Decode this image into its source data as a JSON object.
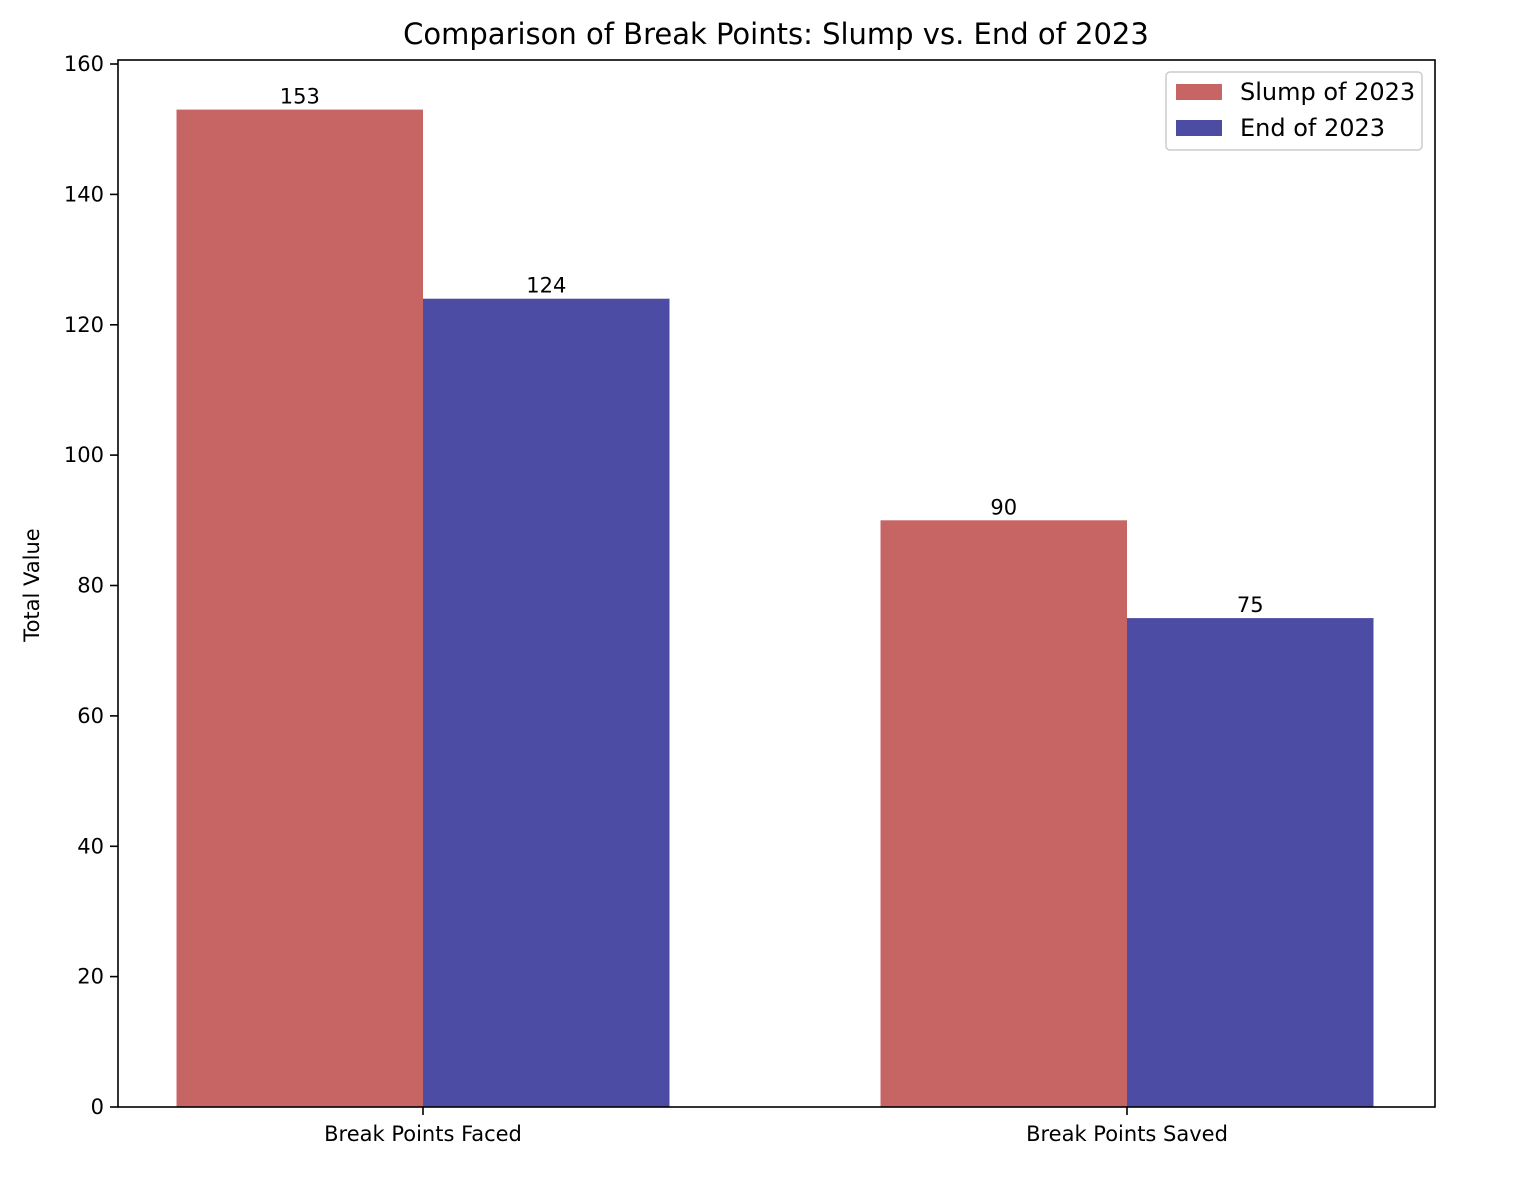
{
  "chart_data": {
    "type": "bar",
    "title": "Comparison of Break Points: Slump vs. End of 2023",
    "xlabel": "",
    "ylabel": "Total Value",
    "categories": [
      "Break Points Faced",
      "Break Points Saved"
    ],
    "series": [
      {
        "name": "Slump of 2023",
        "values": [
          153,
          90
        ],
        "color": "#c76464"
      },
      {
        "name": "End of 2023",
        "values": [
          124,
          75
        ],
        "color": "#4c4ca4"
      }
    ],
    "ylim": [
      0,
      160
    ],
    "yticks": [
      0,
      20,
      40,
      60,
      80,
      100,
      120,
      140,
      160
    ],
    "grid": false,
    "legend": "top-right",
    "bar_labels": true
  }
}
